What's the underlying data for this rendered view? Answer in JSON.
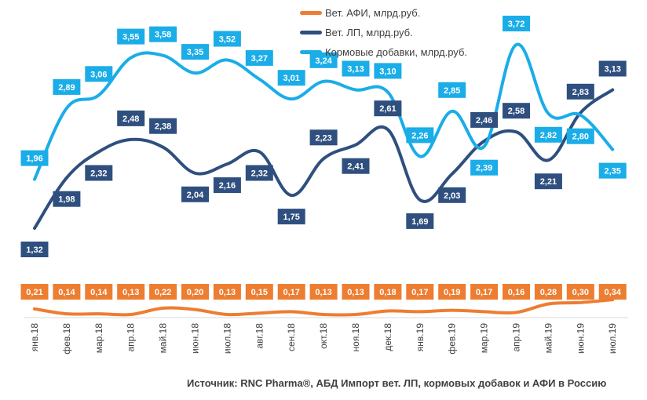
{
  "legend": [
    {
      "name": "Вет. АФИ, млрд.руб.",
      "color": "#ED7D31"
    },
    {
      "name": "Вет. ЛП, млрд.руб.",
      "color": "#2F4F7F"
    },
    {
      "name": "Кормовые добавки, млрд.руб.",
      "color": "#1AADE8"
    }
  ],
  "source": "Источник: RNC Pharma®, АБД Импорт вет. ЛП, кормовых добавок и АФИ в Россию",
  "chart_data": {
    "type": "line",
    "title": "",
    "xlabel": "",
    "ylabel": "",
    "grid": false,
    "legend_position": "top-right",
    "x": [
      "янв.18",
      "фев.18",
      "мар.18",
      "апр.18",
      "май.18",
      "июн.18",
      "июл.18",
      "авг.18",
      "сен.18",
      "окт.18",
      "ноя.18",
      "дек.18",
      "янв.19",
      "фев.19",
      "мар.19",
      "апр.19",
      "май.19",
      "июн.19",
      "июл.19"
    ],
    "series": [
      {
        "name": "Вет. АФИ, млрд.руб.",
        "color": "#ED7D31",
        "values": [
          0.21,
          0.14,
          0.14,
          0.13,
          0.22,
          0.2,
          0.13,
          0.15,
          0.17,
          0.13,
          0.13,
          0.18,
          0.17,
          0.19,
          0.17,
          0.16,
          0.28,
          0.3,
          0.34
        ],
        "labels": [
          "0,21",
          "0,14",
          "0,14",
          "0,13",
          "0,22",
          "0,20",
          "0,13",
          "0,15",
          "0,17",
          "0,13",
          "0,13",
          "0,18",
          "0,17",
          "0,19",
          "0,17",
          "0,16",
          "0,28",
          "0,30",
          "0,34"
        ]
      },
      {
        "name": "Вет. ЛП, млрд.руб.",
        "color": "#2F4F7F",
        "values": [
          1.32,
          1.98,
          2.32,
          2.48,
          2.38,
          2.04,
          2.16,
          2.32,
          1.75,
          2.23,
          2.41,
          2.61,
          1.69,
          2.03,
          2.46,
          2.58,
          2.21,
          2.83,
          3.13
        ],
        "labels": [
          "1,32",
          "1,98",
          "2,32",
          "2,48",
          "2,38",
          "2,04",
          "2,16",
          "2,32",
          "1,75",
          "2,23",
          "2,41",
          "2,61",
          "1,69",
          "2,03",
          "2,46",
          "2,58",
          "2,21",
          "2,83",
          "3,13"
        ]
      },
      {
        "name": "Кормовые добавки, млрд.руб.",
        "color": "#1AADE8",
        "values": [
          1.96,
          2.89,
          3.06,
          3.55,
          3.58,
          3.35,
          3.52,
          3.27,
          3.01,
          3.24,
          3.13,
          3.1,
          2.26,
          2.85,
          2.39,
          3.72,
          2.82,
          2.8,
          2.35
        ],
        "labels": [
          "1,96",
          "2,89",
          "3,06",
          "3,55",
          "3,58",
          "3,35",
          "3,52",
          "3,27",
          "3,01",
          "3,24",
          "3,13",
          "3,10",
          "2,26",
          "2,85",
          "2,39",
          "3,72",
          "2,82",
          "2,80",
          "2,35"
        ]
      }
    ]
  }
}
